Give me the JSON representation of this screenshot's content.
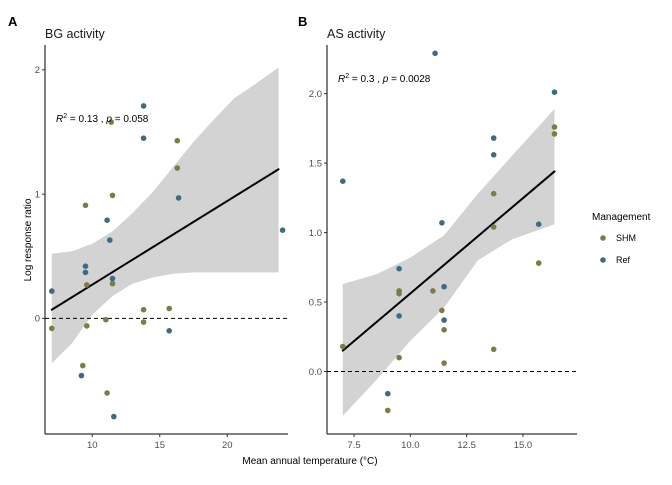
{
  "chart_data": [
    {
      "type": "scatter",
      "panel_label": "A",
      "title": "BG activity",
      "xlabel": "Mean annual temperature (°C)",
      "ylabel": "Log response ratio",
      "xlim": [
        6.5,
        24.5
      ],
      "ylim": [
        -0.93,
        2.2
      ],
      "xticks": [
        10,
        15,
        20
      ],
      "xtick_labels": [
        "10",
        "15",
        "20"
      ],
      "yticks": [
        0,
        1,
        2
      ],
      "ytick_labels": [
        "0",
        "1",
        "2"
      ],
      "reference_line_y": 0,
      "annotation": {
        "r2": "0.13",
        "p": "0.058"
      },
      "fit": {
        "x": [
          7,
          23.8
        ],
        "y": [
          0.07,
          1.2
        ]
      },
      "confidence_band": {
        "x": [
          7,
          8.5,
          10,
          11.5,
          13,
          14.5,
          16,
          17.5,
          19,
          20.5,
          22,
          23.8
        ],
        "upper": [
          0.52,
          0.54,
          0.6,
          0.7,
          0.85,
          1.02,
          1.22,
          1.42,
          1.6,
          1.77,
          1.88,
          2.02
        ],
        "lower": [
          -0.36,
          -0.2,
          0.03,
          0.18,
          0.28,
          0.33,
          0.36,
          0.37,
          0.37,
          0.37,
          0.37,
          0.37
        ]
      },
      "series": [
        {
          "name": "SHM",
          "points": [
            [
              7,
              -0.08
            ],
            [
              9.3,
              -0.38
            ],
            [
              9.5,
              0.91
            ],
            [
              9.6,
              -0.06
            ],
            [
              9.6,
              0.27
            ],
            [
              11,
              -0.01
            ],
            [
              11.1,
              -0.6
            ],
            [
              11.4,
              1.58
            ],
            [
              11.5,
              0.99
            ],
            [
              11.5,
              0.28
            ],
            [
              13.8,
              0.07
            ],
            [
              13.8,
              -0.03
            ],
            [
              15.7,
              0.08
            ],
            [
              16.3,
              1.43
            ],
            [
              16.3,
              1.21
            ]
          ]
        },
        {
          "name": "Ref",
          "points": [
            [
              7,
              0.22
            ],
            [
              9.2,
              -0.46
            ],
            [
              9.5,
              0.42
            ],
            [
              9.5,
              0.37
            ],
            [
              11.1,
              0.79
            ],
            [
              11.3,
              0.63
            ],
            [
              11.5,
              0.32
            ],
            [
              11.6,
              -0.79
            ],
            [
              13.8,
              1.71
            ],
            [
              13.8,
              1.45
            ],
            [
              15.7,
              -0.1
            ],
            [
              16.4,
              0.97
            ],
            [
              24.1,
              0.71
            ]
          ]
        }
      ]
    },
    {
      "type": "scatter",
      "panel_label": "B",
      "title": "AS activity",
      "xlabel": "Mean annual temperature (°C)",
      "ylabel": "",
      "xlim": [
        6.3,
        17.4
      ],
      "ylim": [
        -0.45,
        2.35
      ],
      "xticks": [
        7.5,
        10,
        12.5,
        15
      ],
      "xtick_labels": [
        "7.5",
        "10.0",
        "12.5",
        "15.0"
      ],
      "yticks": [
        0,
        0.5,
        1,
        1.5,
        2
      ],
      "ytick_labels": [
        "0.0",
        "0.5",
        "1.0",
        "1.5",
        "2.0"
      ],
      "reference_line_y": 0,
      "annotation": {
        "r2": "0.3",
        "p": "0.0028"
      },
      "fit": {
        "x": [
          7,
          16.4
        ],
        "y": [
          0.15,
          1.44
        ]
      },
      "confidence_band": {
        "x": [
          7,
          8.5,
          10,
          11.5,
          13,
          14.5,
          16.4
        ],
        "upper": [
          0.63,
          0.7,
          0.82,
          0.98,
          1.28,
          1.55,
          1.89
        ],
        "lower": [
          -0.32,
          -0.06,
          0.22,
          0.46,
          0.8,
          0.95,
          1.06
        ]
      },
      "series": [
        {
          "name": "SHM",
          "points": [
            [
              7,
              0.18
            ],
            [
              9,
              -0.28
            ],
            [
              9.5,
              0.58
            ],
            [
              9.5,
              0.56
            ],
            [
              9.5,
              0.1
            ],
            [
              11,
              0.58
            ],
            [
              11.4,
              0.44
            ],
            [
              11.5,
              0.3
            ],
            [
              11.5,
              0.06
            ],
            [
              13.7,
              1.28
            ],
            [
              13.7,
              1.04
            ],
            [
              13.7,
              0.16
            ],
            [
              15.7,
              0.78
            ],
            [
              16.4,
              1.76
            ],
            [
              16.4,
              1.71
            ]
          ]
        },
        {
          "name": "Ref",
          "points": [
            [
              7,
              1.37
            ],
            [
              9,
              -0.16
            ],
            [
              9.5,
              0.74
            ],
            [
              9.5,
              0.4
            ],
            [
              11.1,
              2.29
            ],
            [
              11.4,
              1.07
            ],
            [
              11.5,
              0.61
            ],
            [
              11.5,
              0.37
            ],
            [
              13.7,
              1.68
            ],
            [
              13.7,
              1.56
            ],
            [
              15.7,
              1.06
            ],
            [
              16.4,
              2.01
            ]
          ]
        }
      ]
    }
  ],
  "legend": {
    "title": "Management",
    "placement": "right",
    "items": [
      {
        "label": "SHM",
        "color": "#7a7d45"
      },
      {
        "label": "Ref",
        "color": "#3f6b82"
      }
    ]
  },
  "colors": {
    "SHM": "#7a7d45",
    "Ref": "#3f6b82",
    "band": "#d3d3d3",
    "fit": "#000000"
  }
}
